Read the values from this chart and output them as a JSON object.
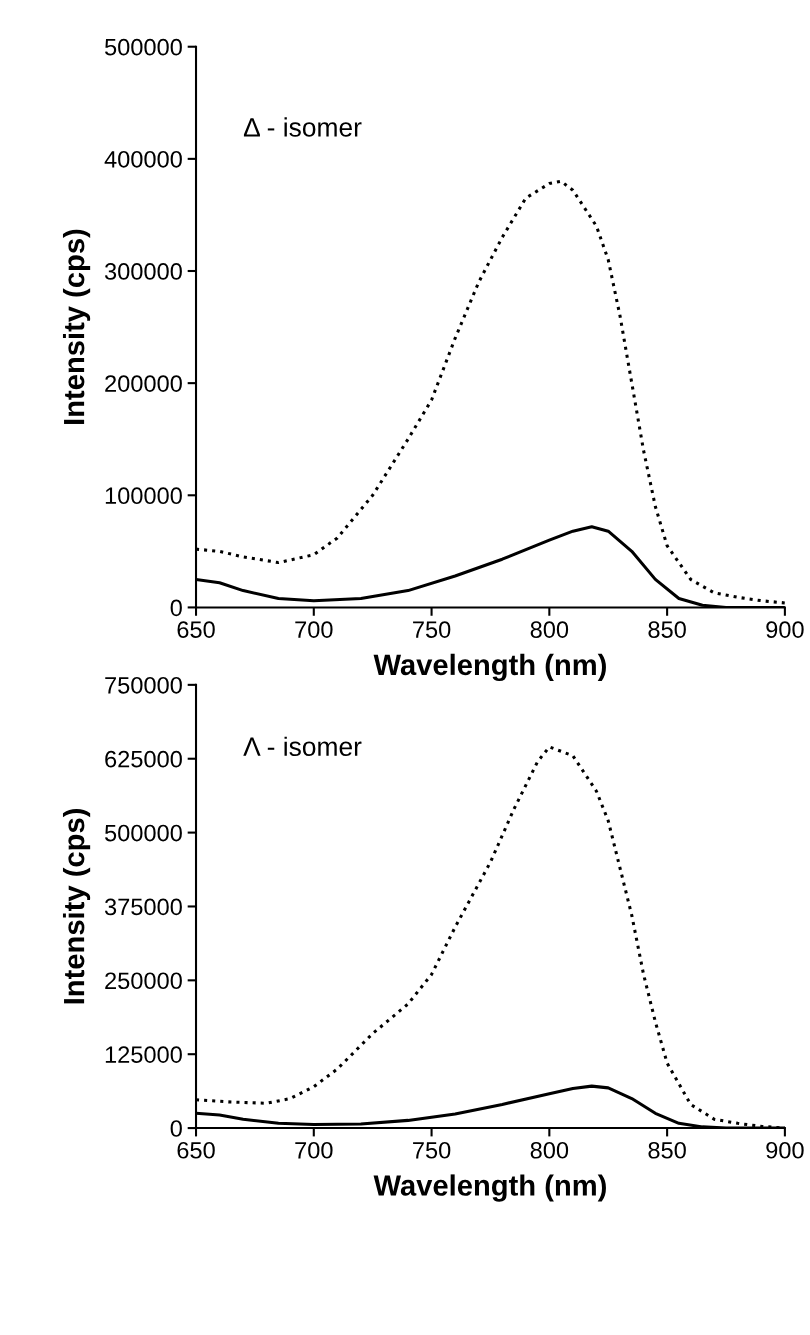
{
  "chart_data": [
    {
      "type": "line",
      "xlabel": "Wavelength (nm)",
      "ylabel": "Intensity (cps)",
      "annotations": [
        "Δ - isomer"
      ],
      "xlim": [
        650,
        900
      ],
      "xticks": [
        650,
        700,
        750,
        800,
        850,
        900
      ],
      "ylim": [
        0,
        500000
      ],
      "yticks": [
        0,
        100000,
        200000,
        300000,
        400000,
        500000
      ],
      "grid": false,
      "legend": false,
      "series": [
        {
          "color": "#000000",
          "line_style": "dotted",
          "x": [
            650,
            660,
            670,
            685,
            700,
            710,
            725,
            740,
            750,
            760,
            770,
            780,
            790,
            800,
            805,
            810,
            820,
            825,
            830,
            835,
            840,
            845,
            850,
            860,
            870,
            880,
            890,
            900
          ],
          "values": [
            52000,
            50000,
            45000,
            40000,
            47000,
            62000,
            100000,
            150000,
            185000,
            240000,
            290000,
            330000,
            365000,
            378000,
            380000,
            372000,
            340000,
            310000,
            260000,
            200000,
            140000,
            90000,
            55000,
            25000,
            13000,
            9000,
            6000,
            4000
          ]
        },
        {
          "color": "#000000",
          "line_style": "solid",
          "x": [
            650,
            660,
            670,
            685,
            700,
            720,
            740,
            760,
            780,
            800,
            810,
            818,
            825,
            835,
            845,
            855,
            865,
            875,
            900
          ],
          "values": [
            25000,
            22000,
            15000,
            8000,
            6000,
            8000,
            15000,
            28000,
            43000,
            60000,
            68000,
            72000,
            68000,
            50000,
            25000,
            8000,
            2000,
            0,
            0
          ]
        }
      ]
    },
    {
      "type": "line",
      "xlabel": "Wavelength (nm)",
      "ylabel": "Intensity (cps)",
      "annotations": [
        "Λ - isomer"
      ],
      "xlim": [
        650,
        900
      ],
      "xticks": [
        650,
        700,
        750,
        800,
        850,
        900
      ],
      "ylim": [
        0,
        750000
      ],
      "yticks": [
        0,
        125000,
        250000,
        375000,
        500000,
        625000,
        750000
      ],
      "grid": false,
      "legend": false,
      "series": [
        {
          "color": "#000000",
          "line_style": "dotted",
          "x": [
            650,
            665,
            680,
            690,
            700,
            710,
            725,
            740,
            750,
            760,
            775,
            785,
            795,
            800,
            810,
            820,
            825,
            830,
            835,
            840,
            845,
            850,
            860,
            870,
            880,
            890,
            900
          ],
          "values": [
            48000,
            44000,
            42000,
            50000,
            70000,
            100000,
            160000,
            210000,
            260000,
            340000,
            450000,
            540000,
            620000,
            645000,
            630000,
            570000,
            520000,
            440000,
            360000,
            260000,
            180000,
            110000,
            40000,
            15000,
            8000,
            3000,
            0
          ]
        },
        {
          "color": "#000000",
          "line_style": "solid",
          "x": [
            650,
            660,
            670,
            685,
            700,
            720,
            740,
            760,
            780,
            800,
            810,
            818,
            825,
            835,
            845,
            855,
            865,
            875,
            900
          ],
          "values": [
            25000,
            22000,
            15000,
            8000,
            6000,
            7000,
            13000,
            24000,
            40000,
            58000,
            67000,
            71000,
            68000,
            50000,
            25000,
            8000,
            2000,
            0,
            0
          ]
        }
      ]
    }
  ]
}
